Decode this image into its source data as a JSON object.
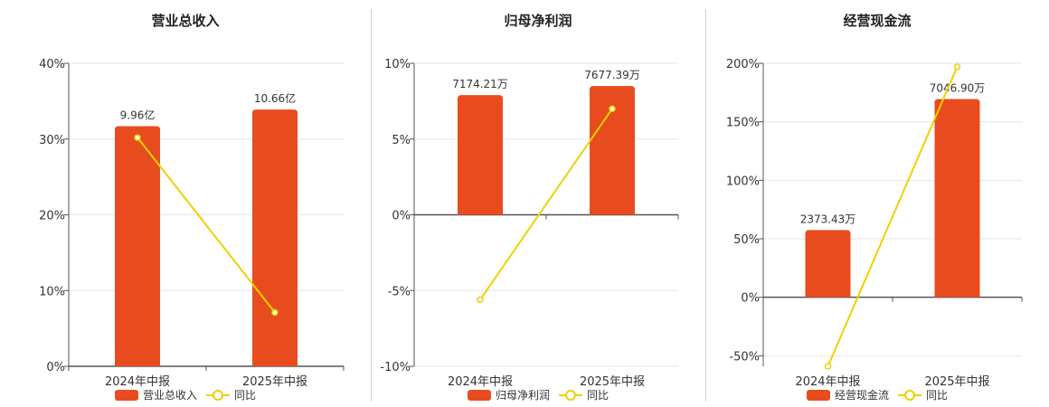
{
  "colors": {
    "bar": "#e84c1e",
    "line": "#f0d000",
    "axis": "#555555",
    "grid": "#e6e6e6"
  },
  "chart_data": [
    {
      "type": "bar",
      "title": "营业总收入",
      "categories": [
        "2024年中报",
        "2025年中报"
      ],
      "series": [
        {
          "name": "营业总收入",
          "type": "bar",
          "values": [
            31.7,
            33.9
          ],
          "labels": [
            "9.96亿",
            "10.66亿"
          ]
        },
        {
          "name": "同比",
          "type": "line",
          "values": [
            30.2,
            7.1
          ]
        }
      ],
      "yticks": [
        0,
        10,
        20,
        30,
        40
      ],
      "ytick_labels": [
        "0%",
        "10%",
        "20%",
        "30%",
        "40%"
      ],
      "ylim": [
        0,
        40
      ],
      "grid": true,
      "legend_position": "bottom"
    },
    {
      "type": "bar",
      "title": "归母净利润",
      "categories": [
        "2024年中报",
        "2025年中报"
      ],
      "series": [
        {
          "name": "归母净利润",
          "type": "bar",
          "values": [
            7.9,
            8.5
          ],
          "labels": [
            "7174.21万",
            "7677.39万"
          ]
        },
        {
          "name": "同比",
          "type": "line",
          "values": [
            -5.6,
            7.0
          ]
        }
      ],
      "yticks": [
        -10,
        -5,
        0,
        5,
        10
      ],
      "ytick_labels": [
        "-10%",
        "-5%",
        "0%",
        "5%",
        "10%"
      ],
      "ylim": [
        -10,
        10
      ],
      "grid": true,
      "legend_position": "bottom"
    },
    {
      "type": "bar",
      "title": "经营现金流",
      "categories": [
        "2024年中报",
        "2025年中报"
      ],
      "series": [
        {
          "name": "经营现金流",
          "type": "bar",
          "values": [
            57.5,
            169.5
          ],
          "labels": [
            "2373.43万",
            "7046.90万"
          ]
        },
        {
          "name": "同比",
          "type": "line",
          "values": [
            -59.0,
            197.0
          ]
        }
      ],
      "yticks": [
        -50,
        0,
        50,
        100,
        150,
        200
      ],
      "ytick_labels": [
        "-50%",
        "0%",
        "50%",
        "100%",
        "150%",
        "200%"
      ],
      "ylim": [
        -59,
        200
      ],
      "grid": true,
      "legend_position": "bottom"
    }
  ]
}
